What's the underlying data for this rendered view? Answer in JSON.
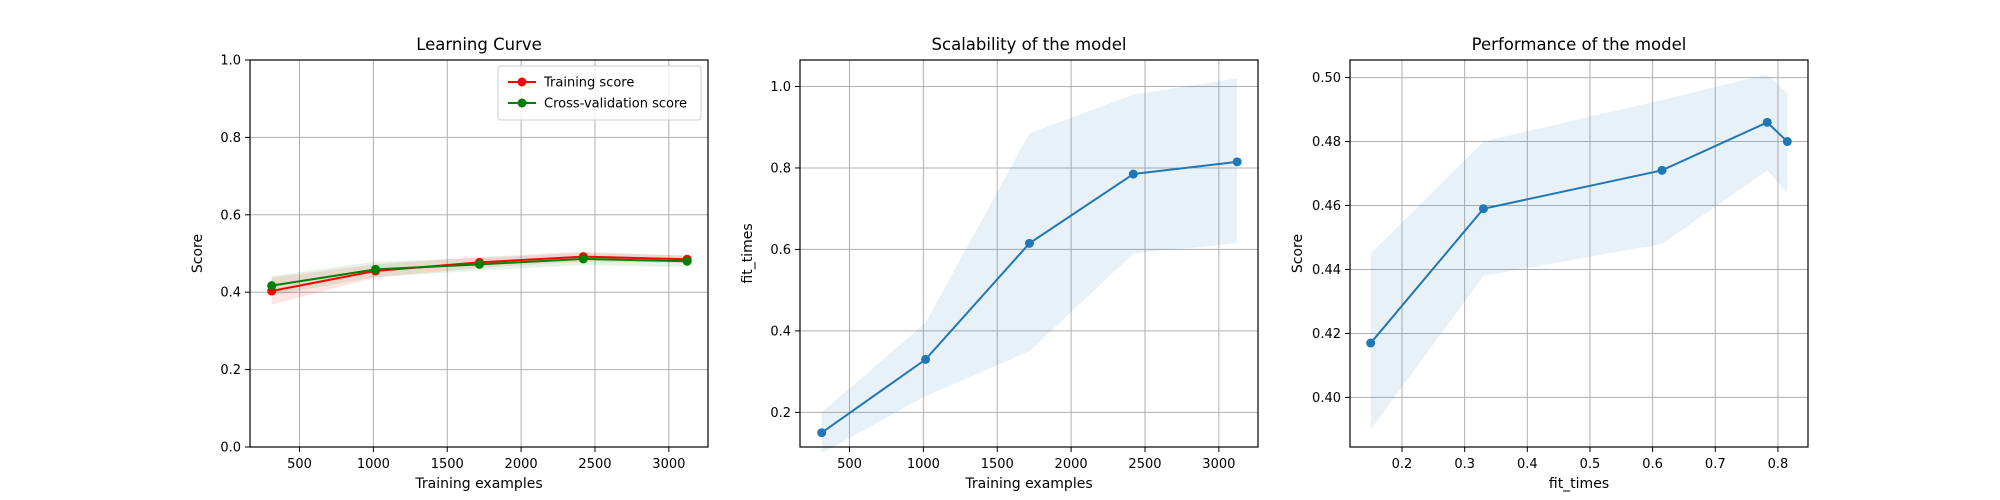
{
  "chart_data": [
    {
      "type": "line",
      "title": "Learning Curve",
      "xlabel": "Training examples",
      "ylabel": "Score",
      "xlim": [
        165,
        3265
      ],
      "ylim": [
        0.0,
        1.0
      ],
      "xticks": [
        500,
        1000,
        1500,
        2000,
        2500,
        3000
      ],
      "yticks": [
        0.0,
        0.2,
        0.4,
        0.6,
        0.8,
        1.0
      ],
      "ytick_decimals": 1,
      "grid": true,
      "legend": "upper-right",
      "x": [
        312,
        1015,
        1718,
        2421,
        3124
      ],
      "series": [
        {
          "name": "Training score",
          "color": "#ff0000",
          "values": [
            0.403,
            0.455,
            0.477,
            0.492,
            0.485
          ],
          "band_lower": [
            0.368,
            0.438,
            0.463,
            0.479,
            0.476
          ],
          "band_upper": [
            0.438,
            0.472,
            0.491,
            0.505,
            0.494
          ]
        },
        {
          "name": "Cross-validation score",
          "color": "#008000",
          "values": [
            0.417,
            0.459,
            0.472,
            0.486,
            0.48
          ],
          "band_lower": [
            0.392,
            0.439,
            0.456,
            0.47,
            0.465
          ],
          "band_upper": [
            0.442,
            0.479,
            0.488,
            0.502,
            0.495
          ]
        }
      ]
    },
    {
      "type": "line",
      "title": "Scalability of the model",
      "xlabel": "Training examples",
      "ylabel": "fit_times",
      "xlim": [
        165,
        3265
      ],
      "ylim": [
        0.115,
        1.065
      ],
      "xticks": [
        500,
        1000,
        1500,
        2000,
        2500,
        3000
      ],
      "yticks": [
        0.2,
        0.4,
        0.6,
        0.8,
        1.0
      ],
      "ytick_decimals": 1,
      "grid": true,
      "x": [
        312,
        1015,
        1718,
        2421,
        3124
      ],
      "series": [
        {
          "color": "#1f77b4",
          "values": [
            0.15,
            0.33,
            0.615,
            0.785,
            0.815
          ],
          "band_lower": [
            0.1,
            0.24,
            0.35,
            0.59,
            0.615
          ],
          "band_upper": [
            0.2,
            0.42,
            0.885,
            0.98,
            1.02
          ]
        }
      ]
    },
    {
      "type": "line",
      "title": "Performance of the model",
      "xlabel": "fit_times",
      "ylabel": "Score",
      "xlim": [
        0.117,
        0.848
      ],
      "ylim": [
        0.3845,
        0.5055
      ],
      "xticks": [
        0.2,
        0.3,
        0.4,
        0.5,
        0.6,
        0.7,
        0.8
      ],
      "yticks": [
        0.4,
        0.42,
        0.44,
        0.46,
        0.48,
        0.5
      ],
      "ytick_decimals": 2,
      "grid": true,
      "x": [
        0.15,
        0.33,
        0.615,
        0.783,
        0.815
      ],
      "series": [
        {
          "color": "#1f77b4",
          "values": [
            0.417,
            0.459,
            0.471,
            0.486,
            0.48
          ],
          "band_lower": [
            0.39,
            0.438,
            0.448,
            0.471,
            0.464
          ],
          "band_upper": [
            0.445,
            0.48,
            0.493,
            0.501,
            0.495
          ]
        }
      ]
    }
  ]
}
